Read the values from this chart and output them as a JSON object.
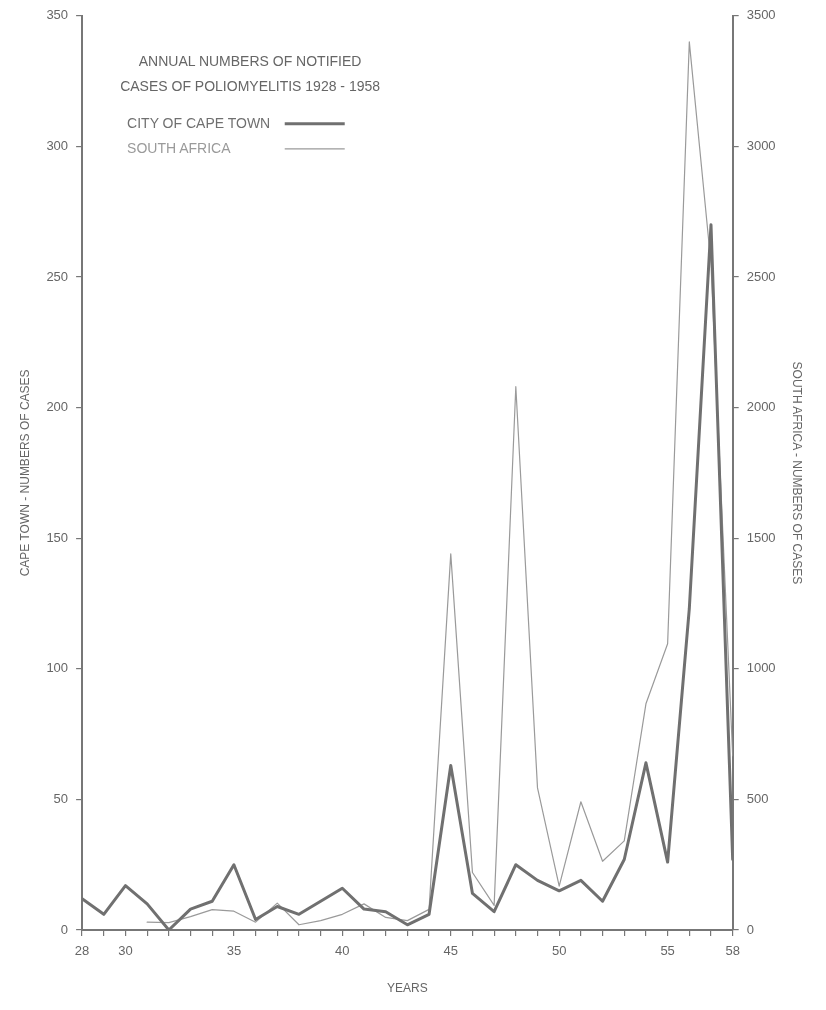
{
  "chart_data": {
    "type": "line",
    "title": "ANNUAL NUMBERS OF NOTIFIED CASES OF POLIOMYELITIS 1928 - 1958",
    "xlabel": "YEARS",
    "ylabel": "CAPE TOWN - NUMBERS OF CASES",
    "y2label": "SOUTH AFRICA - NUMBERS OF CASES",
    "x": [
      28,
      29,
      30,
      31,
      32,
      33,
      34,
      35,
      36,
      37,
      38,
      39,
      40,
      41,
      42,
      43,
      44,
      45,
      46,
      47,
      48,
      49,
      50,
      51,
      52,
      53,
      54,
      55,
      56,
      57,
      58
    ],
    "series": [
      {
        "name": "CITY OF CAPE TOWN",
        "color": "#707070",
        "values": [
          12,
          6,
          17,
          10,
          0,
          8,
          11,
          25,
          4,
          9,
          6,
          11,
          16,
          8,
          7,
          2,
          6,
          63,
          14,
          7,
          25,
          19,
          15,
          19,
          11,
          27,
          64,
          26,
          123,
          270,
          27
        ]
      },
      {
        "name": "SOUTH AFRICA",
        "color": "#9a9a9a",
        "axis": "y2",
        "x": [
          31,
          32,
          33,
          34,
          35,
          36,
          37,
          38,
          39,
          40,
          41,
          42,
          43,
          44,
          45,
          46,
          47,
          48,
          49,
          50,
          51,
          52,
          53,
          54,
          55,
          56,
          57,
          58
        ],
        "values": [
          30,
          28,
          51,
          78,
          72,
          30,
          103,
          20,
          36,
          60,
          100,
          48,
          36,
          79,
          1440,
          220,
          94,
          2080,
          544,
          168,
          491,
          263,
          341,
          866,
          1096,
          3400,
          2550,
          667
        ]
      }
    ],
    "xlim": [
      28,
      58
    ],
    "xticks": [
      28,
      {
        "value": 29,
        "label": null
      },
      30,
      {
        "value": 31,
        "label": null
      },
      {
        "value": 32,
        "label": null
      },
      {
        "value": 33,
        "label": null
      },
      {
        "value": 34,
        "label": null
      },
      35,
      {
        "value": 36,
        "label": null
      },
      {
        "value": 37,
        "label": null
      },
      {
        "value": 38,
        "label": null
      },
      {
        "value": 39,
        "label": null
      },
      40,
      {
        "value": 41,
        "label": null
      },
      {
        "value": 42,
        "label": null
      },
      {
        "value": 43,
        "label": null
      },
      {
        "value": 44,
        "label": null
      },
      45,
      {
        "value": 46,
        "label": null
      },
      {
        "value": 47,
        "label": null
      },
      {
        "value": 48,
        "label": null
      },
      {
        "value": 49,
        "label": null
      },
      50,
      {
        "value": 51,
        "label": null
      },
      {
        "value": 52,
        "label": null
      },
      {
        "value": 53,
        "label": null
      },
      {
        "value": 54,
        "label": null
      },
      55,
      {
        "value": 56,
        "label": null
      },
      {
        "value": 57,
        "label": null
      },
      58
    ],
    "ylim": [
      0,
      350
    ],
    "yticks": [
      0,
      50,
      100,
      150,
      200,
      250,
      300,
      350
    ],
    "y2lim": [
      0,
      3500
    ],
    "y2ticks": [
      0,
      500,
      1000,
      1500,
      2000,
      2500,
      3000,
      3500
    ],
    "legend": "top left",
    "grid": false,
    "marker": "none",
    "line_style": "solid"
  }
}
